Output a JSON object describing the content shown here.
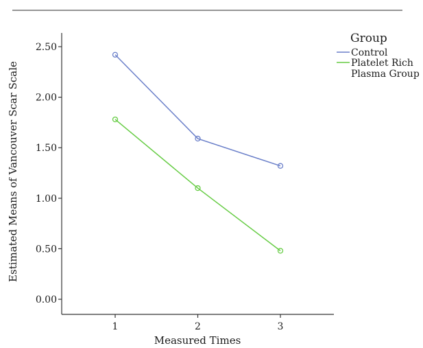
{
  "chart_data": {
    "type": "line",
    "xlabel": "Measured Times",
    "ylabel": "Estimated Means of Vancouver Scar Scale",
    "x": [
      1,
      2,
      3
    ],
    "ylim": [
      0,
      2.6
    ],
    "yticks": [
      "0.00",
      "0.50",
      "1.00",
      "1.50",
      "2.00",
      "2.50"
    ],
    "xticks": [
      "1",
      "2",
      "3"
    ],
    "legend": {
      "title": "Group",
      "placement": "top-right",
      "entries": [
        "Control",
        "Platelet Rich",
        "Plasma Group"
      ]
    },
    "series": [
      {
        "name": "Control",
        "color": "#6a7fc9",
        "values": [
          2.42,
          1.59,
          1.32
        ]
      },
      {
        "name": "Platelet Rich Plasma Group",
        "color": "#66cc44",
        "values": [
          1.78,
          1.1,
          0.48
        ]
      }
    ],
    "grid": false
  },
  "colors": {
    "top_rule": "#555555",
    "axis": "#333333"
  }
}
